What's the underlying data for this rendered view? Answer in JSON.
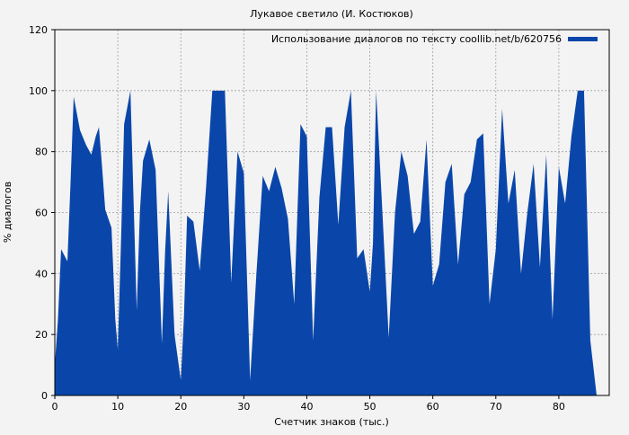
{
  "chart_data": {
    "type": "area",
    "title": "Лукавое светило (И. Костюков)",
    "xlabel": "Счетчик знаков (тыс.)",
    "ylabel": "% диалогов",
    "xlim": [
      0,
      88
    ],
    "ylim": [
      0,
      120
    ],
    "x_ticks": [
      0,
      10,
      20,
      30,
      40,
      50,
      60,
      70,
      80
    ],
    "y_ticks": [
      0,
      20,
      40,
      60,
      80,
      100,
      120
    ],
    "grid": true,
    "legend_position": "top-right",
    "colors": {
      "series": "#0a46aa",
      "background": "#f3f3f3",
      "plot_background": "#f3f3f3",
      "grid": "#a0a0a0"
    },
    "series": [
      {
        "name": "Использование диалогов по тексту coollib.net/b/620756",
        "x": [
          0,
          0.5,
          1,
          1.5,
          2,
          2.5,
          3,
          4,
          5,
          5.8,
          6.5,
          7,
          7.5,
          8,
          9,
          9.6,
          10,
          10.5,
          11,
          12,
          13,
          13.5,
          14,
          15,
          16,
          17,
          17.5,
          18,
          19,
          20,
          20.5,
          21,
          22,
          23,
          24,
          25,
          26,
          27,
          28,
          29,
          30,
          31,
          32,
          33,
          34,
          35,
          36,
          37,
          38,
          39,
          40,
          41,
          42,
          43,
          44,
          45,
          46,
          47,
          48,
          49,
          50,
          50.5,
          51,
          52,
          53,
          54,
          55,
          56,
          57,
          58,
          59,
          60,
          61,
          62,
          63,
          64,
          65,
          66,
          67,
          68,
          69,
          70,
          71,
          72,
          73,
          74,
          75,
          76,
          77,
          78,
          79,
          80,
          81,
          82,
          83,
          84,
          85,
          86
        ],
        "values": [
          10,
          25,
          48,
          46,
          44,
          70,
          98,
          87,
          82,
          79,
          85,
          88,
          75,
          61,
          55,
          25,
          15,
          50,
          89,
          100,
          28,
          60,
          77,
          84,
          74,
          17,
          47,
          67,
          20,
          5,
          26,
          59,
          57,
          41,
          68,
          100,
          100,
          100,
          37,
          80,
          73,
          5,
          40,
          72,
          67,
          75,
          68,
          58,
          30,
          89,
          85,
          18,
          65,
          88,
          88,
          56,
          88,
          100,
          45,
          48,
          34,
          50,
          100,
          60,
          19,
          60,
          80,
          72,
          53,
          57,
          84,
          36,
          43,
          70,
          76,
          43,
          66,
          70,
          84,
          86,
          30,
          48,
          94,
          63,
          74,
          40,
          60,
          76,
          42,
          79,
          25,
          75,
          63,
          85,
          100,
          100,
          18,
          0
        ]
      }
    ]
  }
}
